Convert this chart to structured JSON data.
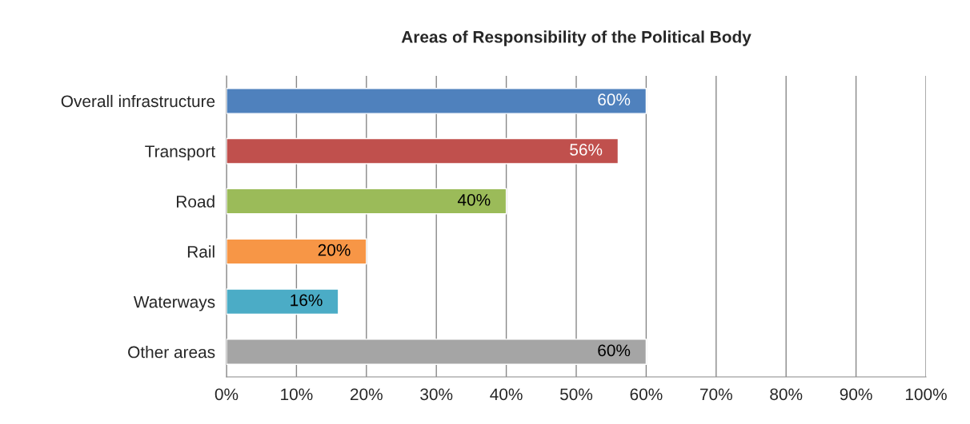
{
  "chart_data": {
    "type": "bar",
    "orientation": "horizontal",
    "title": "Areas of Responsibility of the Political Body",
    "categories": [
      "Overall infrastructure",
      "Transport",
      "Road",
      "Rail",
      "Waterways",
      "Other areas"
    ],
    "values": [
      60,
      56,
      40,
      20,
      16,
      60
    ],
    "colors": [
      "#4f81bd",
      "#c0504d",
      "#9bbb59",
      "#f79646",
      "#4bacc6",
      "#a5a5a5"
    ],
    "value_labels": [
      "60%",
      "56%",
      "40%",
      "20%",
      "16%",
      "60%"
    ],
    "xlim": [
      0,
      100
    ],
    "xticks": [
      {
        "value": 0,
        "label": "0%"
      },
      {
        "value": 10,
        "label": "10%"
      },
      {
        "value": 20,
        "label": "20%"
      },
      {
        "value": 30,
        "label": "30%"
      },
      {
        "value": 40,
        "label": "40%"
      },
      {
        "value": 50,
        "label": "50%"
      },
      {
        "value": 60,
        "label": "60%"
      },
      {
        "value": 70,
        "label": "70%"
      },
      {
        "value": 80,
        "label": "80%"
      },
      {
        "value": 90,
        "label": "90%"
      },
      {
        "value": 100,
        "label": "100%"
      }
    ],
    "grid": "x",
    "legend": false
  }
}
